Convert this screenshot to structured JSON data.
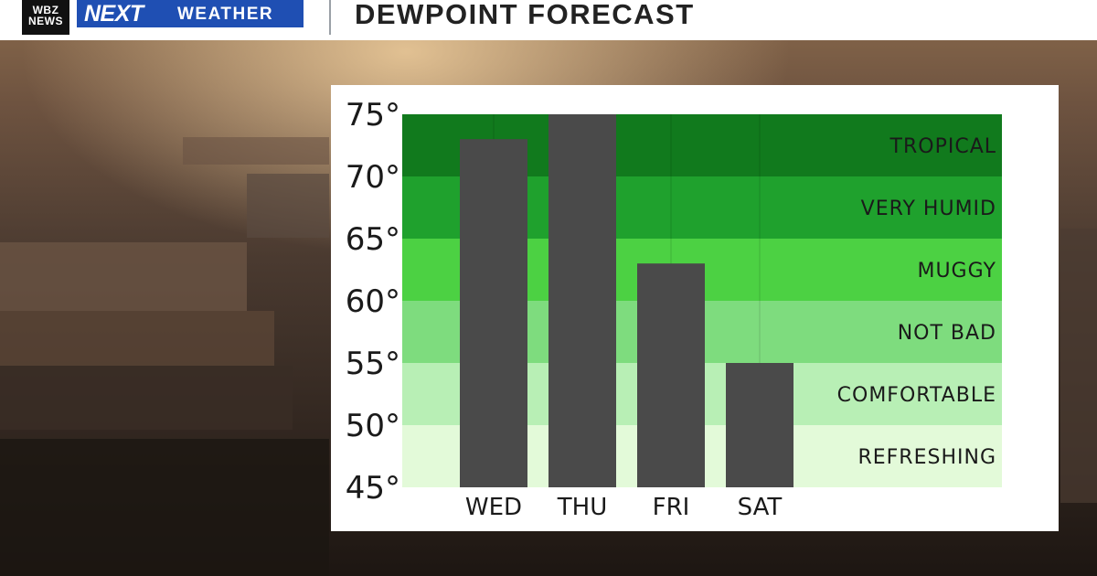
{
  "header": {
    "station_logo_line1": "WBZ",
    "station_logo_line2": "NEWS",
    "brand_next": "NEXT",
    "brand_weather": "WEATHER",
    "title": "DEWPOINT FORECAST"
  },
  "colors": {
    "brand_blue": "#1f4fb3",
    "bar": "#4a4a4a",
    "zone_tropical": "#117a1d",
    "zone_very_humid": "#1fa12d",
    "zone_muggy": "#4cd143",
    "zone_not_bad": "#7edc7e",
    "zone_comfortable": "#b8efb5",
    "zone_refreshing": "#e3fad9"
  },
  "chart_data": {
    "type": "bar",
    "title": "DEWPOINT FORECAST",
    "categories": [
      "WED",
      "THU",
      "FRI",
      "SAT"
    ],
    "values": [
      73,
      75,
      63,
      55
    ],
    "ylim": [
      45,
      75
    ],
    "yticks": [
      "75°",
      "70°",
      "65°",
      "60°",
      "55°",
      "50°",
      "45°"
    ],
    "ytick_values": [
      75,
      70,
      65,
      60,
      55,
      50,
      45
    ],
    "xlabel": "",
    "ylabel": "",
    "zones": [
      {
        "label": "TROPICAL",
        "from": 70,
        "to": 75,
        "color": "#117a1d"
      },
      {
        "label": "VERY HUMID",
        "from": 65,
        "to": 70,
        "color": "#1fa12d"
      },
      {
        "label": "MUGGY",
        "from": 60,
        "to": 65,
        "color": "#4cd143"
      },
      {
        "label": "NOT BAD",
        "from": 55,
        "to": 60,
        "color": "#7edc7e"
      },
      {
        "label": "COMFORTABLE",
        "from": 50,
        "to": 55,
        "color": "#b8efb5"
      },
      {
        "label": "REFRESHING",
        "from": 45,
        "to": 50,
        "color": "#e3fad9"
      }
    ]
  }
}
